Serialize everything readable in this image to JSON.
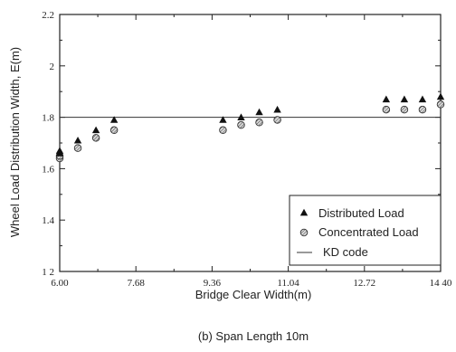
{
  "chart_data": {
    "type": "scatter",
    "xlabel": "Bridge Clear Width(m)",
    "ylabel": "Wheel Load Distribution Width, E(m)",
    "caption": "(b) Span Length 10m",
    "xlim": [
      6.0,
      14.4
    ],
    "ylim": [
      1.2,
      2.2
    ],
    "x_ticks": [
      6.0,
      7.68,
      9.36,
      11.04,
      12.72,
      14.4
    ],
    "x_tick_labels": [
      "6.00",
      "7.68",
      "9.36",
      "11.04",
      "12.72",
      "14 40"
    ],
    "y_ticks": [
      1.2,
      1.4,
      1.6,
      1.8,
      2.0,
      2.2
    ],
    "y_tick_labels": [
      "1 2",
      "1.4",
      "1.6",
      "1.8",
      "2",
      "2.2"
    ],
    "grid": false,
    "legend_position": "bottom-right",
    "series": [
      {
        "name": "Distributed Load",
        "marker": "triangle",
        "color": "#111111",
        "x": [
          6.0,
          6.0,
          6.4,
          6.8,
          7.2,
          9.6,
          10.0,
          10.4,
          10.8,
          13.2,
          13.6,
          14.0,
          14.4
        ],
        "y": [
          1.66,
          1.67,
          1.71,
          1.75,
          1.79,
          1.79,
          1.8,
          1.82,
          1.83,
          1.87,
          1.87,
          1.87,
          1.88
        ]
      },
      {
        "name": "Concentrated Load",
        "marker": "hatched-circle",
        "color": "#555555",
        "x": [
          6.0,
          6.0,
          6.4,
          6.8,
          7.2,
          9.6,
          10.0,
          10.4,
          10.8,
          13.2,
          13.6,
          14.0,
          14.4
        ],
        "y": [
          1.64,
          1.65,
          1.68,
          1.72,
          1.75,
          1.75,
          1.77,
          1.78,
          1.79,
          1.83,
          1.83,
          1.83,
          1.85
        ]
      }
    ],
    "reference_lines": [
      {
        "name": "KD code",
        "y": 1.8
      }
    ]
  }
}
